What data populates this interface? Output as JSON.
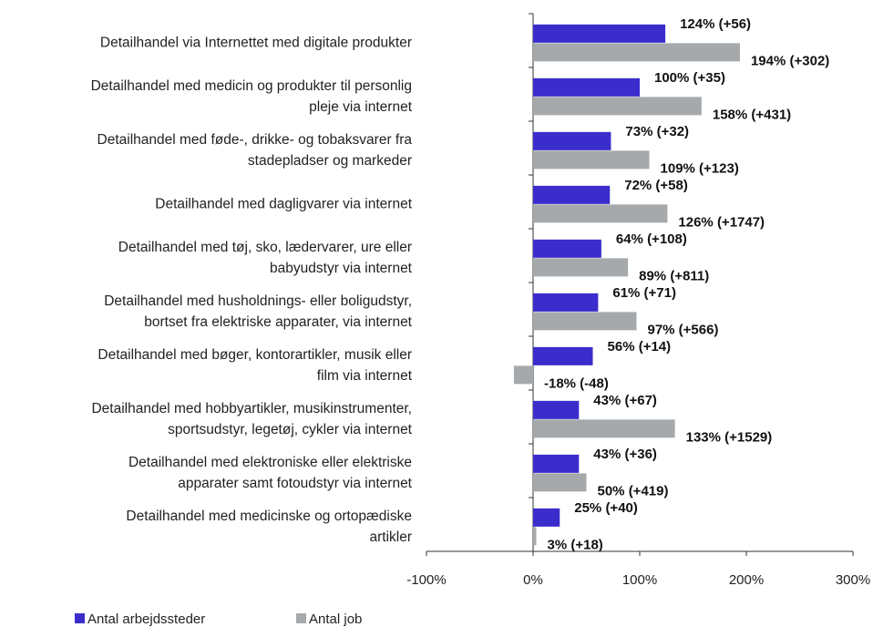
{
  "chart_data": {
    "type": "bar",
    "orientation": "horizontal",
    "categories": [
      "Detailhandel via Internettet med digitale produkter",
      "Detailhandel med medicin og produkter til personlig\npleje via internet",
      "Detailhandel med føde-, drikke- og tobaksvarer fra\nstadepladser og markeder",
      "Detailhandel med dagligvarer via internet",
      "Detailhandel med tøj, sko, lædervarer, ure eller\nbabyudstyr  via internet",
      "Detailhandel med husholdnings- eller boligudstyr,\nbortset fra elektriske apparater, via internet",
      "Detailhandel med bøger, kontorartikler, musik eller\nfilm via internet",
      "Detailhandel med hobbyartikler, musikinstrumenter,\nsportsudstyr, legetøj, cykler via internet",
      "Detailhandel med elektroniske eller elektriske\napparater samt fotoudstyr via internet",
      "Detailhandel med medicinske og ortopædiske\nartikler"
    ],
    "series": [
      {
        "name": "Antal arbejdssteder",
        "color": "#3b2dcc",
        "values": [
          124,
          100,
          73,
          72,
          64,
          61,
          56,
          43,
          43,
          25
        ],
        "value_labels": [
          "124% (+56)",
          "100% (+35)",
          "73% (+32)",
          "72% (+58)",
          "64% (+108)",
          "61% (+71)",
          "56% (+14)",
          "43% (+67)",
          "43% (+36)",
          "25% (+40)"
        ]
      },
      {
        "name": "Antal job",
        "color": "#a6a9ab",
        "values": [
          194,
          158,
          109,
          126,
          89,
          97,
          -18,
          133,
          50,
          3
        ],
        "value_labels": [
          "194% (+302)",
          "158% (+431)",
          "109% (+123)",
          "126% (+1747)",
          "89% (+811)",
          "97% (+566)",
          "-18% (-48)",
          "133% (+1529)",
          "50% (+419)",
          "3% (+18)"
        ]
      }
    ],
    "xlim": [
      -100,
      300
    ],
    "xticks": [
      {
        "value": -100,
        "label": "-100%"
      },
      {
        "value": 0,
        "label": "0%"
      },
      {
        "value": 100,
        "label": "100%"
      },
      {
        "value": 200,
        "label": "200%"
      },
      {
        "value": 300,
        "label": "300%"
      }
    ],
    "grid": false,
    "legend": "bottom"
  }
}
